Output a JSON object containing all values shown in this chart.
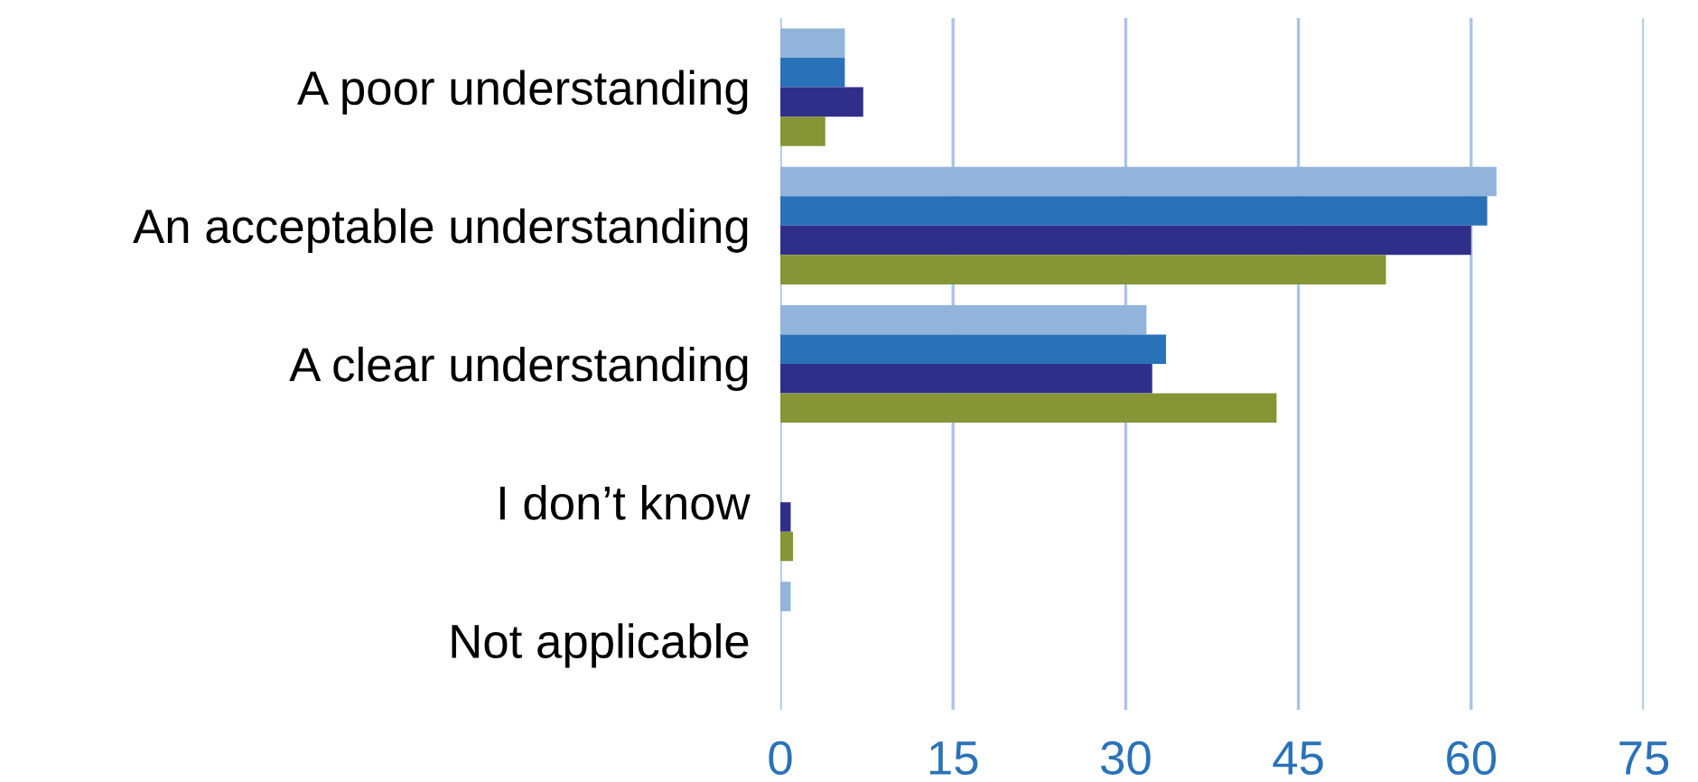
{
  "chart_data": {
    "type": "bar",
    "orientation": "horizontal",
    "categories": [
      "A poor understanding",
      "An acceptable understanding",
      "A clear understanding",
      "I don’t know",
      "Not applicable"
    ],
    "series": [
      {
        "color": "#92b4da",
        "values": [
          5.6,
          62.2,
          31.8,
          0,
          0.9
        ]
      },
      {
        "color": "#2a72b8",
        "values": [
          5.6,
          61.4,
          33.5,
          0,
          0
        ]
      },
      {
        "color": "#2f2f8a",
        "values": [
          7.2,
          60.0,
          32.3,
          0.9,
          0
        ]
      },
      {
        "color": "#869536",
        "values": [
          3.9,
          52.6,
          43.1,
          1.1,
          0
        ]
      }
    ],
    "xlim": [
      0,
      75
    ],
    "xticks": [
      0,
      15,
      30,
      45,
      60,
      75
    ],
    "grid": "x",
    "legend": false
  }
}
